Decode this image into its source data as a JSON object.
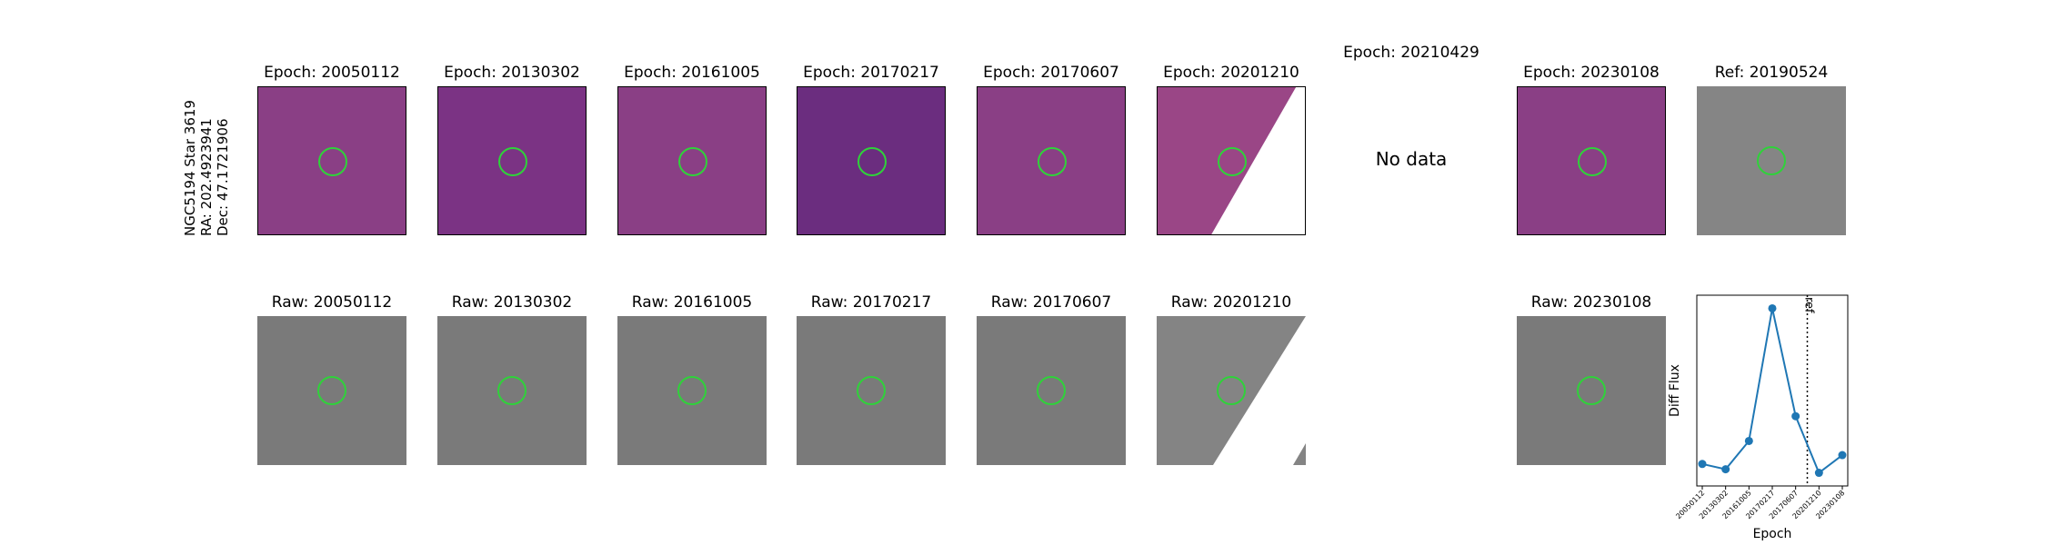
{
  "object": {
    "name": "NGC5194 Star 3619",
    "ra": "RA: 202.4923941",
    "dec": "Dec: 47.1721906"
  },
  "diff_panels": [
    {
      "title": "Epoch: 20050112",
      "has_data": true
    },
    {
      "title": "Epoch: 20130302",
      "has_data": true
    },
    {
      "title": "Epoch: 20161005",
      "has_data": true
    },
    {
      "title": "Epoch: 20170217",
      "has_data": true
    },
    {
      "title": "Epoch: 20170607",
      "has_data": true
    },
    {
      "title": "Epoch: 20201210",
      "has_data": true
    },
    {
      "title": "Epoch: 20210429",
      "has_data": false,
      "no_data_text": "No data"
    },
    {
      "title": "Epoch: 20230108",
      "has_data": true
    }
  ],
  "ref_panel": {
    "title": "Ref: 20190524"
  },
  "raw_panels": [
    {
      "title": "Raw: 20050112"
    },
    {
      "title": "Raw: 20130302"
    },
    {
      "title": "Raw: 20161005"
    },
    {
      "title": "Raw: 20170217"
    },
    {
      "title": "Raw: 20170607"
    },
    {
      "title": "Raw: 20201210"
    },
    {
      "title": "Raw: 20230108"
    }
  ],
  "colors": {
    "diff_bg": "#8a3f85",
    "raw_bg": "#7a7a7a",
    "aperture": "#2fd23a",
    "series": "#1f77b4"
  },
  "chart_data": {
    "type": "line",
    "categories": [
      "20050112",
      "20130302",
      "20161005",
      "20170217",
      "20170607",
      "20201210",
      "20230108"
    ],
    "values": [
      0.12,
      0.09,
      0.25,
      1.0,
      0.39,
      0.07,
      0.17
    ],
    "xlabel": "Epoch",
    "ylabel": "Diff Flux",
    "ref_line": {
      "label": "ref",
      "position_between": [
        "20170607",
        "20201210"
      ],
      "style": "dotted"
    },
    "yticks_shown": false,
    "grid": false
  }
}
